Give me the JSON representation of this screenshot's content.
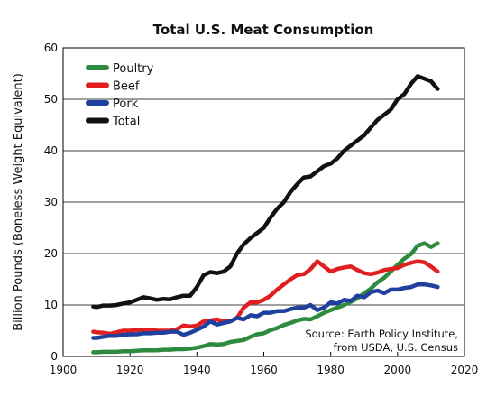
{
  "chart_data": {
    "type": "line",
    "title": "Total U.S. Meat Consumption",
    "xlabel": "",
    "ylabel": "Billion Pounds (Boneless Weight Equivalent)",
    "xlim": [
      1900,
      2020
    ],
    "ylim": [
      0,
      60
    ],
    "x_ticks": [
      1900,
      1920,
      1940,
      1960,
      1980,
      2000,
      2020
    ],
    "y_ticks": [
      0,
      10,
      20,
      30,
      40,
      50,
      60
    ],
    "grid": "horizontal",
    "legend_position": "top-left",
    "annotation": [
      "Source: Earth Policy Institute,",
      "from USDA, U.S. Census"
    ],
    "x": [
      1909,
      1910,
      1912,
      1914,
      1916,
      1918,
      1920,
      1922,
      1924,
      1926,
      1928,
      1930,
      1932,
      1934,
      1936,
      1938,
      1940,
      1942,
      1944,
      1946,
      1948,
      1950,
      1952,
      1954,
      1956,
      1958,
      1960,
      1962,
      1964,
      1966,
      1968,
      1970,
      1972,
      1974,
      1976,
      1978,
      1980,
      1982,
      1984,
      1986,
      1988,
      1990,
      1992,
      1994,
      1996,
      1998,
      2000,
      2002,
      2004,
      2006,
      2008,
      2010,
      2012
    ],
    "series": [
      {
        "name": "Poultry",
        "color": "#2e8b3e",
        "values": [
          0.8,
          0.8,
          0.9,
          0.9,
          0.9,
          1.0,
          1.0,
          1.1,
          1.2,
          1.2,
          1.2,
          1.3,
          1.3,
          1.4,
          1.4,
          1.5,
          1.7,
          2.0,
          2.4,
          2.3,
          2.4,
          2.8,
          3.0,
          3.2,
          3.8,
          4.3,
          4.5,
          5.1,
          5.5,
          6.1,
          6.5,
          7.0,
          7.3,
          7.2,
          7.8,
          8.5,
          9.0,
          9.5,
          10.0,
          10.6,
          11.3,
          12.3,
          13.2,
          14.4,
          15.3,
          16.5,
          17.8,
          19.0,
          19.9,
          21.5,
          22.0,
          21.3,
          22.0
        ]
      },
      {
        "name": "Beef",
        "color": "#e02020",
        "values": [
          4.8,
          4.7,
          4.6,
          4.4,
          4.7,
          5.0,
          5.0,
          5.1,
          5.2,
          5.2,
          5.0,
          5.0,
          5.0,
          5.3,
          6.0,
          5.8,
          6.0,
          6.8,
          7.0,
          7.2,
          6.8,
          6.8,
          7.5,
          9.5,
          10.5,
          10.5,
          11.0,
          11.8,
          13.0,
          14.0,
          15.0,
          15.8,
          16.0,
          17.0,
          18.5,
          17.5,
          16.5,
          17.0,
          17.3,
          17.5,
          16.8,
          16.2,
          16.0,
          16.3,
          16.8,
          17.0,
          17.2,
          17.8,
          18.2,
          18.5,
          18.3,
          17.5,
          16.5
        ]
      },
      {
        "name": "Pork",
        "color": "#2040a0",
        "values": [
          3.6,
          3.6,
          3.8,
          4.0,
          4.0,
          4.2,
          4.3,
          4.3,
          4.5,
          4.5,
          4.6,
          4.6,
          4.8,
          4.8,
          4.2,
          4.6,
          5.2,
          5.8,
          6.8,
          6.2,
          6.5,
          6.8,
          7.5,
          7.2,
          8.0,
          7.8,
          8.5,
          8.5,
          8.8,
          8.8,
          9.2,
          9.5,
          9.5,
          10.0,
          9.0,
          9.5,
          10.5,
          10.3,
          11.0,
          10.8,
          11.8,
          11.5,
          12.5,
          12.8,
          12.3,
          13.0,
          13.0,
          13.3,
          13.5,
          14.0,
          14.0,
          13.8,
          13.5
        ]
      },
      {
        "name": "Total",
        "color": "#111111",
        "values": [
          9.7,
          9.6,
          9.9,
          9.9,
          10.0,
          10.3,
          10.5,
          11.0,
          11.5,
          11.3,
          11.0,
          11.2,
          11.1,
          11.5,
          11.8,
          11.8,
          13.5,
          15.8,
          16.4,
          16.2,
          16.5,
          17.5,
          20.0,
          21.8,
          23.0,
          24.0,
          25.0,
          27.0,
          28.7,
          30.0,
          32.0,
          33.5,
          34.8,
          35.0,
          36.0,
          37.0,
          37.5,
          38.5,
          40.0,
          41.0,
          42.0,
          43.0,
          44.5,
          46.0,
          47.0,
          48.0,
          50.0,
          51.0,
          53.0,
          54.5,
          54.0,
          53.5,
          52.0
        ]
      }
    ]
  }
}
